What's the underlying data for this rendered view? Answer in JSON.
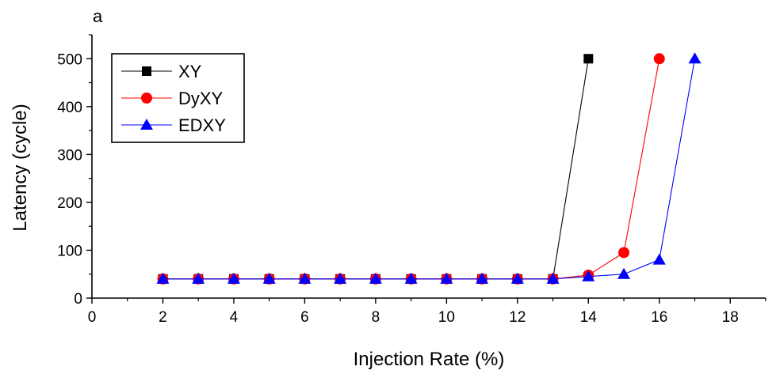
{
  "chart_data": {
    "type": "line",
    "panel_label": "a",
    "title": "",
    "xlabel": "Injection Rate (%)",
    "ylabel": "Latency (cycle)",
    "xlim": [
      0,
      19
    ],
    "ylim": [
      0,
      550
    ],
    "xticks": [
      0,
      2,
      4,
      6,
      8,
      10,
      12,
      14,
      16,
      18
    ],
    "yticks": [
      0,
      100,
      200,
      300,
      400,
      500
    ],
    "legend_position": "top-left",
    "grid": false,
    "series": [
      {
        "name": "XY",
        "color": "#000000",
        "marker": "square",
        "x": [
          2,
          3,
          4,
          5,
          6,
          7,
          8,
          9,
          10,
          11,
          12,
          13,
          14
        ],
        "y": [
          40,
          40,
          40,
          40,
          40,
          40,
          40,
          40,
          40,
          40,
          40,
          40,
          500
        ]
      },
      {
        "name": "DyXY",
        "color": "#ff0000",
        "marker": "circle",
        "x": [
          2,
          3,
          4,
          5,
          6,
          7,
          8,
          9,
          10,
          11,
          12,
          13,
          14,
          15,
          16
        ],
        "y": [
          40,
          40,
          40,
          40,
          40,
          40,
          40,
          40,
          40,
          40,
          40,
          40,
          48,
          95,
          500
        ]
      },
      {
        "name": "EDXY",
        "color": "#0000ff",
        "marker": "triangle",
        "x": [
          2,
          3,
          4,
          5,
          6,
          7,
          8,
          9,
          10,
          11,
          12,
          13,
          14,
          15,
          16,
          17
        ],
        "y": [
          40,
          40,
          40,
          40,
          40,
          40,
          40,
          40,
          40,
          40,
          40,
          40,
          45,
          50,
          80,
          500
        ]
      }
    ]
  }
}
